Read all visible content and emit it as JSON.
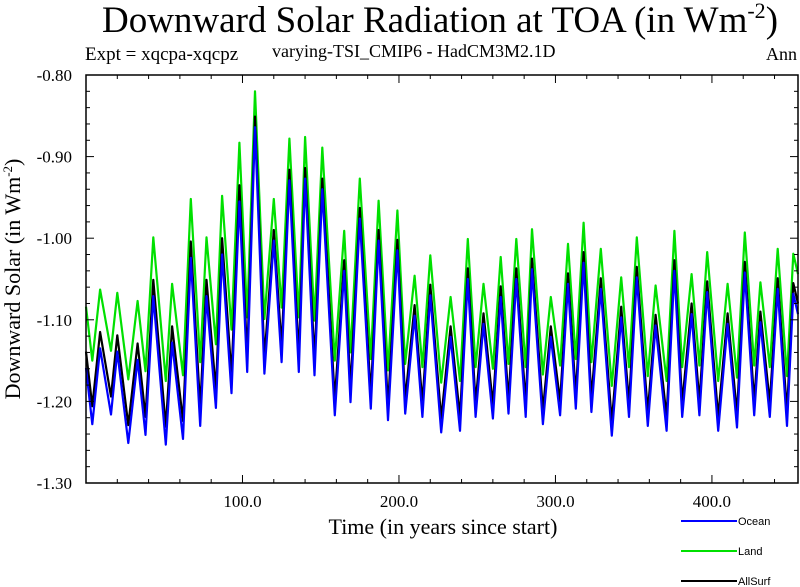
{
  "chart_data": {
    "type": "line",
    "title": {
      "main": "Downward Solar Radiation at TOA (in Wm",
      "sup": "-2",
      "end": ")"
    },
    "subtitle_left": "Expt = xqcpa-xqcpz",
    "subtitle_center": "varying-TSI_CMIP6 - HadCM3M2.1D",
    "subtitle_right": "Ann",
    "xlabel": "Time (in years since start)",
    "ylabel": {
      "main": "Downward Solar (in Wm",
      "sup": "-2",
      "end": ")"
    },
    "xlim": [
      0,
      455
    ],
    "ylim": [
      -1.3,
      -0.8
    ],
    "xticks": [
      100,
      200,
      300,
      400
    ],
    "xtick_labels": [
      "100.0",
      "200.0",
      "300.0",
      "400.0"
    ],
    "yticks": [
      -0.8,
      -0.9,
      -1.0,
      -1.1,
      -1.2,
      -1.3
    ],
    "ytick_labels": [
      "-0.80",
      "-0.90",
      "-1.00",
      "-1.10",
      "-1.20",
      "-1.30"
    ],
    "grid": false,
    "legend_position": "bottom-right, below plot",
    "x": [
      0,
      4,
      9,
      16,
      20,
      27,
      33,
      38,
      43,
      51,
      55,
      62,
      67,
      73,
      77,
      83,
      87,
      93,
      98,
      103,
      108,
      114,
      120,
      125,
      130,
      136,
      140,
      146,
      151,
      159,
      165,
      169,
      175,
      182,
      187,
      193,
      199,
      204,
      210,
      215,
      220,
      227,
      233,
      239,
      244,
      249,
      254,
      260,
      265,
      270,
      275,
      281,
      285,
      292,
      297,
      303,
      308,
      313,
      318,
      323,
      329,
      336,
      342,
      347,
      352,
      359,
      364,
      371,
      376,
      381,
      387,
      392,
      397,
      404,
      410,
      416,
      421,
      427,
      431,
      437,
      442,
      448,
      452,
      455
    ],
    "series": [
      {
        "name": "Land",
        "color": "#00e000",
        "values": [
          -1.084,
          -1.15,
          -1.063,
          -1.138,
          -1.067,
          -1.173,
          -1.077,
          -1.163,
          -0.999,
          -1.175,
          -1.056,
          -1.168,
          -0.952,
          -1.152,
          -0.999,
          -1.13,
          -0.948,
          -1.112,
          -0.883,
          -1.097,
          -0.82,
          -1.099,
          -0.952,
          -1.085,
          -0.878,
          -1.097,
          -0.876,
          -1.101,
          -0.889,
          -1.15,
          -0.991,
          -1.14,
          -0.927,
          -1.148,
          -0.954,
          -1.162,
          -0.966,
          -1.154,
          -1.046,
          -1.158,
          -1.021,
          -1.177,
          -1.072,
          -1.175,
          -1.001,
          -1.158,
          -1.056,
          -1.16,
          -1.023,
          -1.154,
          -1.001,
          -1.158,
          -0.989,
          -1.167,
          -1.072,
          -1.156,
          -1.007,
          -1.148,
          -0.981,
          -1.152,
          -1.013,
          -1.181,
          -1.048,
          -1.158,
          -0.999,
          -1.169,
          -1.058,
          -1.175,
          -0.991,
          -1.158,
          -1.044,
          -1.156,
          -1.017,
          -1.175,
          -1.056,
          -1.171,
          -0.993,
          -1.156,
          -1.054,
          -1.158,
          -1.013,
          -1.169,
          -1.019,
          -1.044
        ]
      },
      {
        "name": "AllSurf",
        "color": "#000000",
        "values": [
          -1.139,
          -1.206,
          -1.115,
          -1.194,
          -1.119,
          -1.229,
          -1.129,
          -1.219,
          -1.051,
          -1.231,
          -1.108,
          -1.224,
          -1.004,
          -1.208,
          -1.051,
          -1.186,
          -1.0,
          -1.168,
          -0.935,
          -1.145,
          -0.851,
          -1.147,
          -0.99,
          -1.133,
          -0.916,
          -1.145,
          -0.914,
          -1.149,
          -0.927,
          -1.198,
          -1.027,
          -1.184,
          -0.963,
          -1.192,
          -0.99,
          -1.206,
          -1.002,
          -1.198,
          -1.082,
          -1.202,
          -1.057,
          -1.221,
          -1.108,
          -1.219,
          -1.037,
          -1.202,
          -1.092,
          -1.204,
          -1.059,
          -1.198,
          -1.037,
          -1.202,
          -1.025,
          -1.211,
          -1.108,
          -1.2,
          -1.043,
          -1.192,
          -1.017,
          -1.196,
          -1.049,
          -1.225,
          -1.084,
          -1.202,
          -1.035,
          -1.213,
          -1.094,
          -1.219,
          -1.027,
          -1.202,
          -1.08,
          -1.2,
          -1.053,
          -1.219,
          -1.092,
          -1.215,
          -1.029,
          -1.2,
          -1.09,
          -1.202,
          -1.049,
          -1.213,
          -1.055,
          -1.08
        ]
      },
      {
        "name": "Ocean",
        "color": "#0000ff",
        "values": [
          -1.159,
          -1.228,
          -1.135,
          -1.216,
          -1.139,
          -1.251,
          -1.149,
          -1.241,
          -1.071,
          -1.253,
          -1.128,
          -1.246,
          -1.024,
          -1.23,
          -1.071,
          -1.208,
          -1.02,
          -1.19,
          -0.955,
          -1.164,
          -0.864,
          -1.166,
          -1.003,
          -1.152,
          -0.929,
          -1.164,
          -0.927,
          -1.168,
          -0.94,
          -1.217,
          -1.04,
          -1.201,
          -0.976,
          -1.209,
          -1.003,
          -1.223,
          -1.015,
          -1.215,
          -1.095,
          -1.219,
          -1.07,
          -1.238,
          -1.121,
          -1.236,
          -1.05,
          -1.219,
          -1.105,
          -1.221,
          -1.072,
          -1.215,
          -1.05,
          -1.219,
          -1.038,
          -1.228,
          -1.121,
          -1.217,
          -1.056,
          -1.209,
          -1.03,
          -1.213,
          -1.062,
          -1.242,
          -1.097,
          -1.219,
          -1.048,
          -1.23,
          -1.107,
          -1.236,
          -1.04,
          -1.219,
          -1.093,
          -1.217,
          -1.066,
          -1.236,
          -1.105,
          -1.232,
          -1.042,
          -1.217,
          -1.103,
          -1.219,
          -1.062,
          -1.23,
          -1.068,
          -1.093
        ]
      }
    ],
    "legend": [
      "Ocean",
      "Land",
      "AllSurf"
    ]
  }
}
